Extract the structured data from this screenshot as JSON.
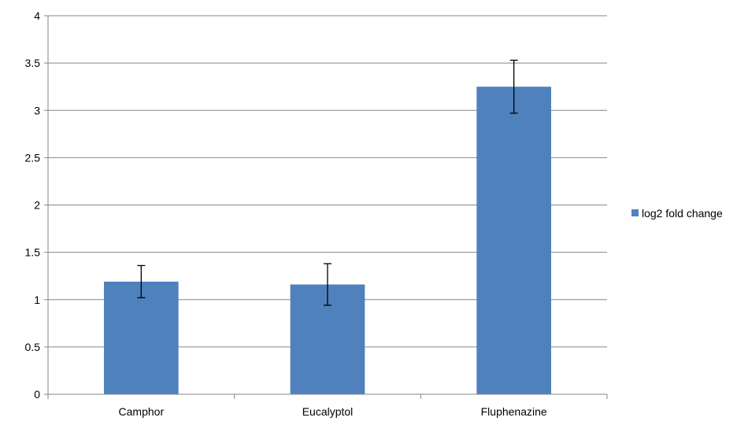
{
  "chart_data": {
    "type": "bar",
    "categories": [
      "Camphor",
      "Eucalyptol",
      "Fluphenazine"
    ],
    "series": [
      {
        "name": "log2 fold change",
        "values": [
          1.19,
          1.16,
          3.25
        ],
        "error": [
          0.17,
          0.22,
          0.28
        ],
        "color": "#4F81BD"
      }
    ],
    "ylim": [
      0,
      4
    ],
    "yticks": [
      0,
      0.5,
      1,
      1.5,
      2,
      2.5,
      3,
      3.5,
      4
    ],
    "title": "",
    "xlabel": "",
    "ylabel": "",
    "grid": true,
    "legend_position": "right",
    "colors": {
      "grid": "#868686",
      "axis": "#868686",
      "error_bar": "#000000"
    }
  }
}
